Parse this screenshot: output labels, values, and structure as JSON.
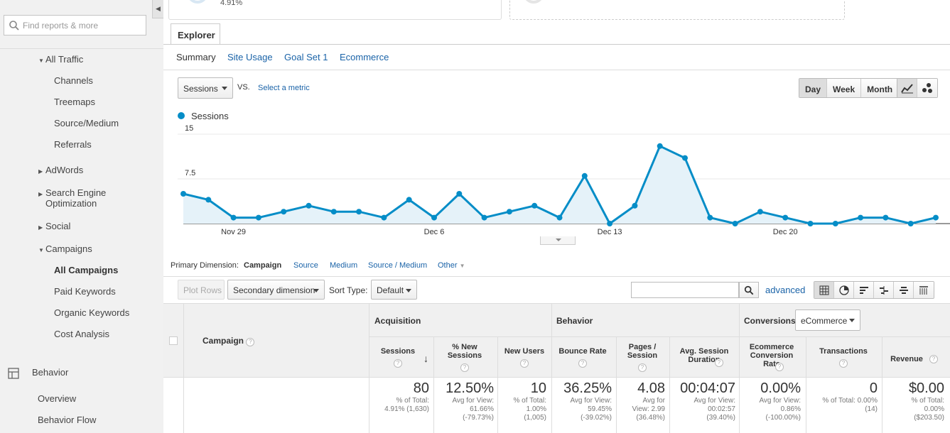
{
  "sidebar": {
    "search_placeholder": "Find reports & more",
    "items": [
      {
        "label": "All Traffic"
      },
      {
        "label": "Channels"
      },
      {
        "label": "Treemaps"
      },
      {
        "label": "Source/Medium"
      },
      {
        "label": "Referrals"
      },
      {
        "label": "AdWords"
      },
      {
        "label": "Search Engine"
      },
      {
        "label": "Optimization"
      },
      {
        "label": "Social"
      },
      {
        "label": "Campaigns"
      },
      {
        "label": "All Campaigns"
      },
      {
        "label": "Paid Keywords"
      },
      {
        "label": "Organic Keywords"
      },
      {
        "label": "Cost Analysis"
      },
      {
        "label": "Behavior"
      },
      {
        "label": "Overview"
      },
      {
        "label": "Behavior Flow"
      }
    ]
  },
  "top_card": {
    "value": "4.91%"
  },
  "explorer": {
    "tab_label": "Explorer",
    "subtabs": [
      "Summary",
      "Site Usage",
      "Goal Set 1",
      "Ecommerce"
    ]
  },
  "controls": {
    "metric": "Sessions",
    "vs": "VS.",
    "select_metric": "Select a metric",
    "periods": [
      "Day",
      "Week",
      "Month"
    ],
    "active_period": "Day"
  },
  "chart_data": {
    "type": "area",
    "series": [
      {
        "name": "Sessions",
        "color": "#058dc7",
        "values": [
          5,
          4,
          1,
          1,
          2,
          3,
          2,
          2,
          1,
          4,
          1,
          5,
          1,
          2,
          3,
          1,
          8,
          0,
          3,
          13,
          11,
          1,
          0,
          2,
          1,
          0,
          0,
          1,
          1,
          0,
          1
        ]
      }
    ],
    "y_ticks": [
      "7.5",
      "15"
    ],
    "ylim": [
      0,
      15
    ],
    "x_labels": [
      "Nov 29",
      "Dec 6",
      "Dec 13",
      "Dec 20"
    ],
    "x_label_index": [
      2,
      10,
      17,
      24
    ]
  },
  "primary_dimension": {
    "label": "Primary Dimension:",
    "active": "Campaign",
    "options": [
      "Source",
      "Medium",
      "Source / Medium",
      "Other"
    ]
  },
  "filter": {
    "plot_rows": "Plot Rows",
    "secondary": "Secondary dimension",
    "sort_label": "Sort Type:",
    "sort_value": "Default",
    "advanced": "advanced"
  },
  "table": {
    "campaign_header": "Campaign",
    "groups": {
      "acquisition": "Acquisition",
      "behavior": "Behavior",
      "conversions": "Conversions",
      "conversions_select": "eCommerce"
    },
    "columns": [
      {
        "label": "Sessions"
      },
      {
        "label": "% New Sessions"
      },
      {
        "label": "New Users"
      },
      {
        "label": "Bounce Rate"
      },
      {
        "label": "Pages / Session"
      },
      {
        "label": "Avg. Session Duration"
      },
      {
        "label": "Ecommerce Conversion Rate"
      },
      {
        "label": "Transactions"
      },
      {
        "label": "Revenue"
      }
    ],
    "totals": [
      {
        "value": "80",
        "l1": "% of Total:",
        "l2": "4.91% (1,630)",
        "l3": ""
      },
      {
        "value": "12.50%",
        "l1": "Avg for View:",
        "l2": "61.66%",
        "l3": "(-79.73%)"
      },
      {
        "value": "10",
        "l1": "% of Total:",
        "l2": "1.00%",
        "l3": "(1,005)"
      },
      {
        "value": "36.25%",
        "l1": "Avg for View:",
        "l2": "59.45%",
        "l3": "(-39.02%)"
      },
      {
        "value": "4.08",
        "l1": "Avg for",
        "l2": "View: 2.99",
        "l3": "(36.48%)"
      },
      {
        "value": "00:04:07",
        "l1": "Avg for View:",
        "l2": "00:02:57",
        "l3": "(39.40%)"
      },
      {
        "value": "0.00%",
        "l1": "Avg for View:",
        "l2": "0.86%",
        "l3": "(-100.00%)"
      },
      {
        "value": "0",
        "l1": "% of Total: 0.00%",
        "l2": "(14)",
        "l3": ""
      },
      {
        "value": "$0.00",
        "l1": "% of Total:",
        "l2": "0.00%",
        "l3": "($203.50)"
      }
    ]
  }
}
